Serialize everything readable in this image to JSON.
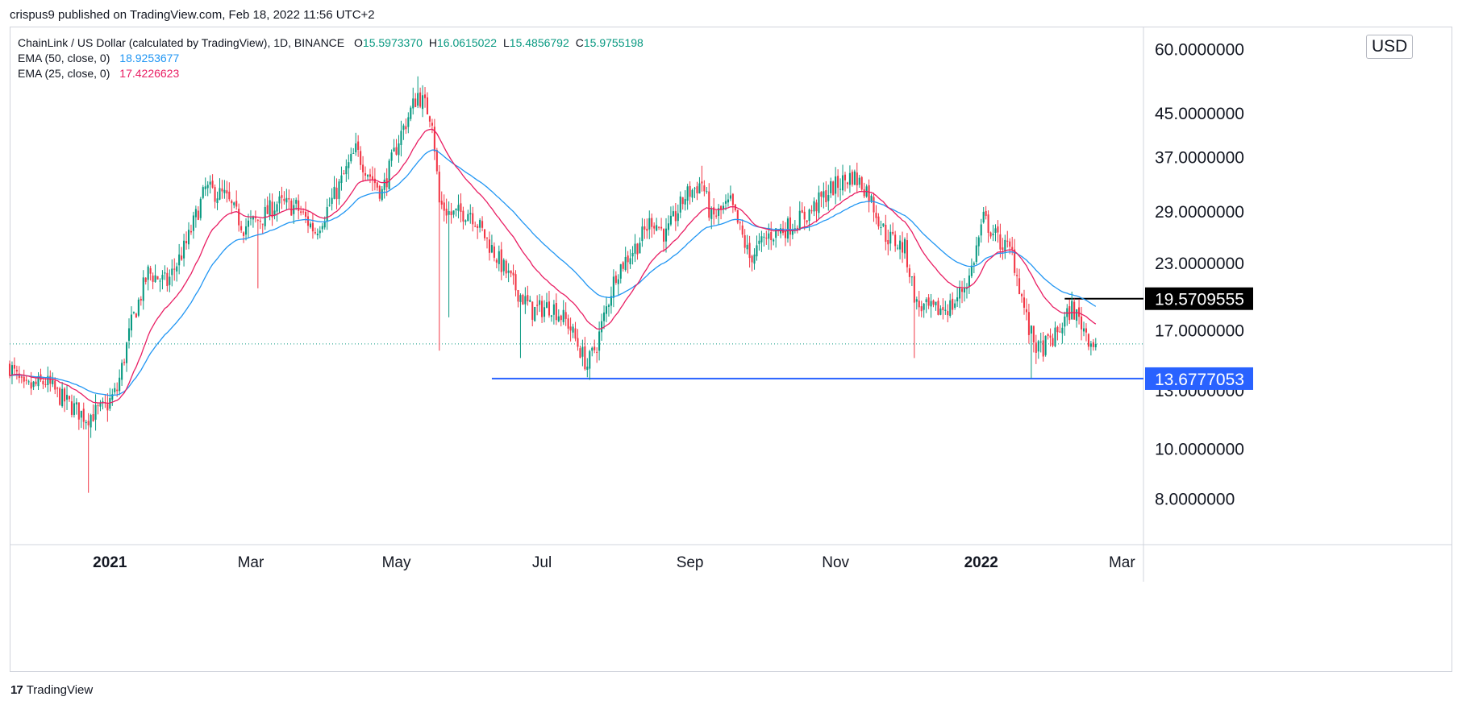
{
  "header": {
    "publisher": "crispus9 published on TradingView.com, Feb 18, 2022 11:56 UTC+2"
  },
  "legend": {
    "symbol": "ChainLink / US Dollar (calculated by TradingView), 1D, BINANCE",
    "ohlc": [
      {
        "key": "O",
        "value": "15.5973370"
      },
      {
        "key": "H",
        "value": "16.0615022"
      },
      {
        "key": "L",
        "value": "15.4856792"
      },
      {
        "key": "C",
        "value": "15.9755198"
      }
    ],
    "ema50_label": "EMA (50, close, 0)",
    "ema50_value": "18.9253677",
    "ema25_label": "EMA (25, close, 0)",
    "ema25_value": "17.4226623"
  },
  "currency": "USD",
  "footer": {
    "brand": "TradingView"
  },
  "colors": {
    "up": "#089981",
    "down": "#f23645",
    "ema50": "#2196f3",
    "ema25": "#e91e63",
    "support": "#2962ff",
    "resistance": "#000000",
    "last_price_line": "#089981"
  },
  "chart_data": {
    "type": "candlestick",
    "title": "ChainLink / US Dollar (calculated by TradingView), 1D, BINANCE",
    "scale": "log",
    "ylim": [
      6.5,
      66
    ],
    "x_range": [
      "2020-11-20",
      "2022-03-10"
    ],
    "x_ticks": [
      {
        "label": "2021",
        "date": "2021-01-01",
        "bold": true
      },
      {
        "label": "Mar",
        "date": "2021-03-01",
        "bold": false
      },
      {
        "label": "May",
        "date": "2021-05-01",
        "bold": false
      },
      {
        "label": "Jul",
        "date": "2021-07-01",
        "bold": false
      },
      {
        "label": "Sep",
        "date": "2021-09-01",
        "bold": false
      },
      {
        "label": "Nov",
        "date": "2021-11-01",
        "bold": false
      },
      {
        "label": "2022",
        "date": "2022-01-01",
        "bold": true
      },
      {
        "label": "Mar",
        "date": "2022-03-01",
        "bold": false
      }
    ],
    "y_ticks": [
      {
        "label": "60.0000000",
        "value": 60
      },
      {
        "label": "45.0000000",
        "value": 45
      },
      {
        "label": "37.0000000",
        "value": 37
      },
      {
        "label": "29.0000000",
        "value": 29
      },
      {
        "label": "23.0000000",
        "value": 23
      },
      {
        "label": "17.0000000",
        "value": 17
      },
      {
        "label": "13.0000000",
        "value": 13
      },
      {
        "label": "10.0000000",
        "value": 10
      },
      {
        "label": "8.0000000",
        "value": 8
      }
    ],
    "price_path": [
      [
        "2020-11-20",
        14.5
      ],
      [
        "2020-11-26",
        13.0
      ],
      [
        "2020-12-05",
        13.5
      ],
      [
        "2020-12-12",
        12.5
      ],
      [
        "2020-12-22",
        11.5
      ],
      [
        "2020-12-30",
        12.0
      ],
      [
        "2021-01-04",
        13.0
      ],
      [
        "2021-01-10",
        17.5
      ],
      [
        "2021-01-17",
        22.0
      ],
      [
        "2021-01-25",
        21.0
      ],
      [
        "2021-02-02",
        25.0
      ],
      [
        "2021-02-10",
        32.0
      ],
      [
        "2021-02-18",
        31.0
      ],
      [
        "2021-02-26",
        27.0
      ],
      [
        "2021-03-05",
        28.0
      ],
      [
        "2021-03-12",
        30.0
      ],
      [
        "2021-03-20",
        29.5
      ],
      [
        "2021-03-28",
        26.5
      ],
      [
        "2021-04-05",
        31.0
      ],
      [
        "2021-04-14",
        38.0
      ],
      [
        "2021-04-20",
        34.0
      ],
      [
        "2021-04-25",
        31.5
      ],
      [
        "2021-05-02",
        40.0
      ],
      [
        "2021-05-10",
        49.0
      ],
      [
        "2021-05-16",
        44.0
      ],
      [
        "2021-05-19",
        30.0
      ],
      [
        "2021-05-24",
        28.5
      ],
      [
        "2021-06-01",
        29.0
      ],
      [
        "2021-06-10",
        24.5
      ],
      [
        "2021-06-20",
        20.5
      ],
      [
        "2021-06-27",
        18.5
      ],
      [
        "2021-07-05",
        19.0
      ],
      [
        "2021-07-12",
        17.5
      ],
      [
        "2021-07-20",
        14.5
      ],
      [
        "2021-07-24",
        16.0
      ],
      [
        "2021-08-01",
        22.0
      ],
      [
        "2021-08-10",
        25.0
      ],
      [
        "2021-08-16",
        28.0
      ],
      [
        "2021-08-22",
        26.0
      ],
      [
        "2021-08-30",
        31.0
      ],
      [
        "2021-09-06",
        33.0
      ],
      [
        "2021-09-10",
        28.0
      ],
      [
        "2021-09-18",
        30.0
      ],
      [
        "2021-09-26",
        23.5
      ],
      [
        "2021-10-04",
        26.0
      ],
      [
        "2021-10-12",
        27.0
      ],
      [
        "2021-10-20",
        28.5
      ],
      [
        "2021-10-30",
        32.0
      ],
      [
        "2021-11-08",
        34.0
      ],
      [
        "2021-11-14",
        32.0
      ],
      [
        "2021-11-22",
        26.0
      ],
      [
        "2021-11-30",
        24.5
      ],
      [
        "2021-12-05",
        19.0
      ],
      [
        "2021-12-12",
        18.5
      ],
      [
        "2021-12-20",
        19.0
      ],
      [
        "2021-12-27",
        21.5
      ],
      [
        "2022-01-02",
        28.0
      ],
      [
        "2022-01-08",
        25.5
      ],
      [
        "2022-01-14",
        24.0
      ],
      [
        "2022-01-21",
        17.0
      ],
      [
        "2022-01-25",
        15.5
      ],
      [
        "2022-02-01",
        16.5
      ],
      [
        "2022-02-08",
        18.8
      ],
      [
        "2022-02-12",
        17.5
      ],
      [
        "2022-02-16",
        16.2
      ],
      [
        "2022-02-18",
        15.98
      ]
    ],
    "low_spikes": [
      [
        "2020-12-23",
        8.2
      ],
      [
        "2021-05-19",
        15.5
      ],
      [
        "2021-05-23",
        18.0
      ],
      [
        "2021-06-22",
        15.0
      ],
      [
        "2021-03-04",
        20.5
      ],
      [
        "2021-12-04",
        15.0
      ],
      [
        "2021-07-21",
        13.6
      ],
      [
        "2022-01-22",
        13.7
      ]
    ],
    "high_spikes": [
      [
        "2021-05-10",
        53.0
      ],
      [
        "2021-09-06",
        35.5
      ],
      [
        "2021-11-10",
        36.0
      ],
      [
        "2022-01-02",
        29.5
      ]
    ],
    "last_close": 15.9755198,
    "horizontal_lines": [
      {
        "name": "support",
        "label": "13.6777053",
        "value": 13.6777053,
        "from": "2021-06-10",
        "to": "2022-03-10",
        "color": "#2962ff"
      },
      {
        "name": "resistance",
        "label": "19.5709555",
        "value": 19.5709555,
        "from": "2022-02-05",
        "to": "2022-03-10",
        "color": "#000000"
      }
    ],
    "series": [
      {
        "name": "EMA (50, close, 0)",
        "period": 50,
        "color": "#2196f3"
      },
      {
        "name": "EMA (25, close, 0)",
        "period": 25,
        "color": "#e91e63"
      }
    ]
  }
}
